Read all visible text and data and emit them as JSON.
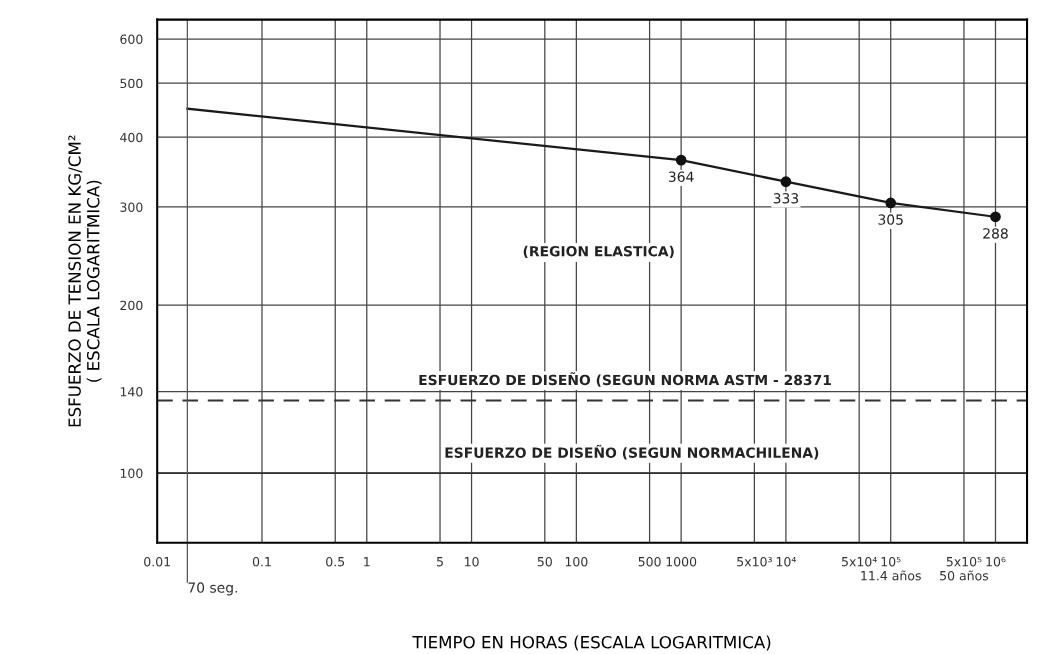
{
  "chart_data": {
    "type": "line",
    "xlabel": "TIEMPO EN HORAS (ESCALA LOGARITMICA)",
    "ylabel": "ESFUERZO DE TENSION EN KG/CM²\n( ESCALA LOGARITMICA)",
    "log": "xy",
    "grid": true,
    "xlim": [
      0.01,
      2000000
    ],
    "ylim": [
      75,
      650
    ],
    "xticks": [
      0.01,
      0.1,
      0.5,
      1,
      5,
      10,
      50,
      100,
      500,
      1000,
      {
        "value": 5000,
        "label": "5x10³"
      },
      {
        "value": 10000,
        "label": "10⁴"
      },
      {
        "value": 50000,
        "label": "5x10⁴"
      },
      {
        "value": 100000,
        "label": "10⁵\n11.4 años"
      },
      {
        "value": 500000,
        "label": "5x10⁵\n50 años"
      },
      {
        "value": 1000000,
        "label": "10⁶"
      }
    ],
    "yticks": [
      100,
      140,
      200,
      300,
      400,
      500,
      600
    ],
    "series": [
      {
        "color": "#1a1a1a",
        "marker": "none",
        "line_style": "solid",
        "x": [
          0.0194,
          1000,
          10000,
          100000,
          1000000
        ],
        "values": [
          450,
          364,
          333,
          305,
          288
        ]
      },
      {
        "type": "scatter",
        "color": "#111111",
        "marker": "circle",
        "x": [
          1000,
          10000,
          100000,
          1000000
        ],
        "values": [
          364,
          333,
          305,
          288
        ],
        "value_labels": [
          "364",
          "333",
          "305",
          "288"
        ]
      }
    ],
    "ref_lines": [
      {
        "axis": "y",
        "value": 135,
        "label": "ESFUERZO DE DISEÑO (SEGUN NORMA ASTM - 28371",
        "line_style": "dashed",
        "color": "#333333"
      },
      {
        "axis": "y",
        "value": 100,
        "label": "ESFUERZO DE DISEÑO (SEGUN NORMACHILENA)",
        "line_style": "solid",
        "color": "#333333"
      },
      {
        "axis": "x",
        "value": 0.0194,
        "label": "70 seg.",
        "line_style": "solid",
        "color": "#555555"
      }
    ],
    "annotations": [
      "(REGION ELASTICA)"
    ]
  }
}
